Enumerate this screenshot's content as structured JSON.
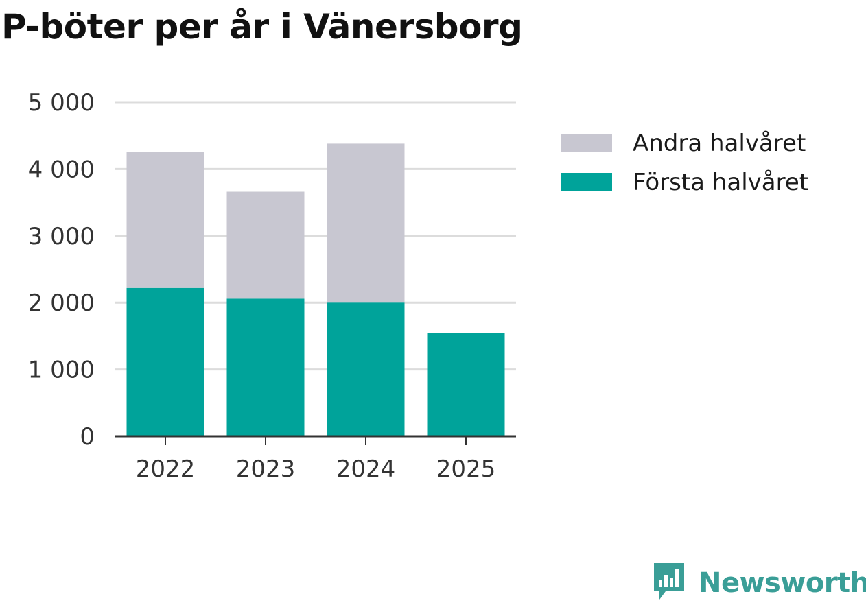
{
  "title": "P-böter per år i Vänersborg",
  "brand": {
    "name": "Newsworthy",
    "icon": "newsworthy-logo-icon",
    "color": "#3a9e97"
  },
  "chart_data": {
    "type": "bar",
    "stacked": true,
    "categories": [
      "2022",
      "2023",
      "2024",
      "2025"
    ],
    "series": [
      {
        "name": "Första halvåret",
        "color": "#00a39a",
        "values": [
          2220,
          2060,
          2000,
          1540
        ]
      },
      {
        "name": "Andra halvåret",
        "color": "#c8c7d1",
        "values": [
          2040,
          1600,
          2380,
          0
        ]
      }
    ],
    "ylim": [
      0,
      5000
    ],
    "yticks": [
      0,
      1000,
      2000,
      3000,
      4000,
      5000
    ],
    "ytick_labels": [
      "0",
      "1 000",
      "2 000",
      "3 000",
      "4 000",
      "5 000"
    ],
    "grid": true,
    "legend_position": "right",
    "legend_order": [
      "Andra halvåret",
      "Första halvåret"
    ]
  }
}
